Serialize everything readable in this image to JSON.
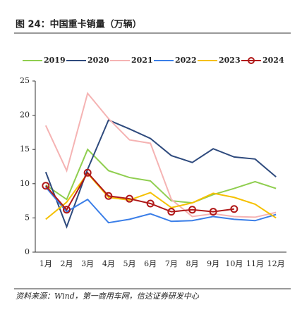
{
  "chart_data": {
    "type": "line",
    "title": "图 24：中国重卡销量（万辆）",
    "source": "资料来源：Wind，第一商用车网，信达证券研发中心",
    "categories": [
      "1月",
      "2月",
      "3月",
      "4月",
      "5月",
      "6月",
      "7月",
      "8月",
      "9月",
      "10月",
      "11月",
      "12月"
    ],
    "ylim": [
      0,
      25
    ],
    "yticks": [
      0,
      5,
      10,
      15,
      20,
      25
    ],
    "series": [
      {
        "name": "2019",
        "color": "#8fce4f",
        "values": [
          9.8,
          7.7,
          15.0,
          11.9,
          10.9,
          10.4,
          7.5,
          7.2,
          8.4,
          9.3,
          10.3,
          9.3
        ]
      },
      {
        "name": "2020",
        "color": "#2e4a7d",
        "values": [
          11.7,
          3.7,
          12.1,
          19.3,
          18.0,
          16.6,
          14.1,
          13.1,
          15.1,
          13.9,
          13.6,
          11.0
        ]
      },
      {
        "name": "2021",
        "color": "#f5b3b3",
        "values": [
          18.5,
          11.9,
          23.2,
          19.5,
          16.4,
          15.9,
          7.7,
          5.2,
          5.6,
          5.2,
          5.1,
          5.8
        ]
      },
      {
        "name": "2022",
        "color": "#3a7ee8",
        "values": [
          9.5,
          5.9,
          7.7,
          4.3,
          4.8,
          5.6,
          4.5,
          4.6,
          5.2,
          4.8,
          4.6,
          5.5
        ]
      },
      {
        "name": "2023",
        "color": "#f5c000",
        "values": [
          4.8,
          7.3,
          11.5,
          8.0,
          7.6,
          8.7,
          6.5,
          7.2,
          8.6,
          8.0,
          7.0,
          5.0
        ]
      },
      {
        "name": "2024",
        "color": "#b01818",
        "marker": "circle",
        "values": [
          9.7,
          6.2,
          11.6,
          8.2,
          7.8,
          7.1,
          5.9,
          6.2,
          5.9,
          6.3,
          null,
          null
        ]
      }
    ]
  }
}
